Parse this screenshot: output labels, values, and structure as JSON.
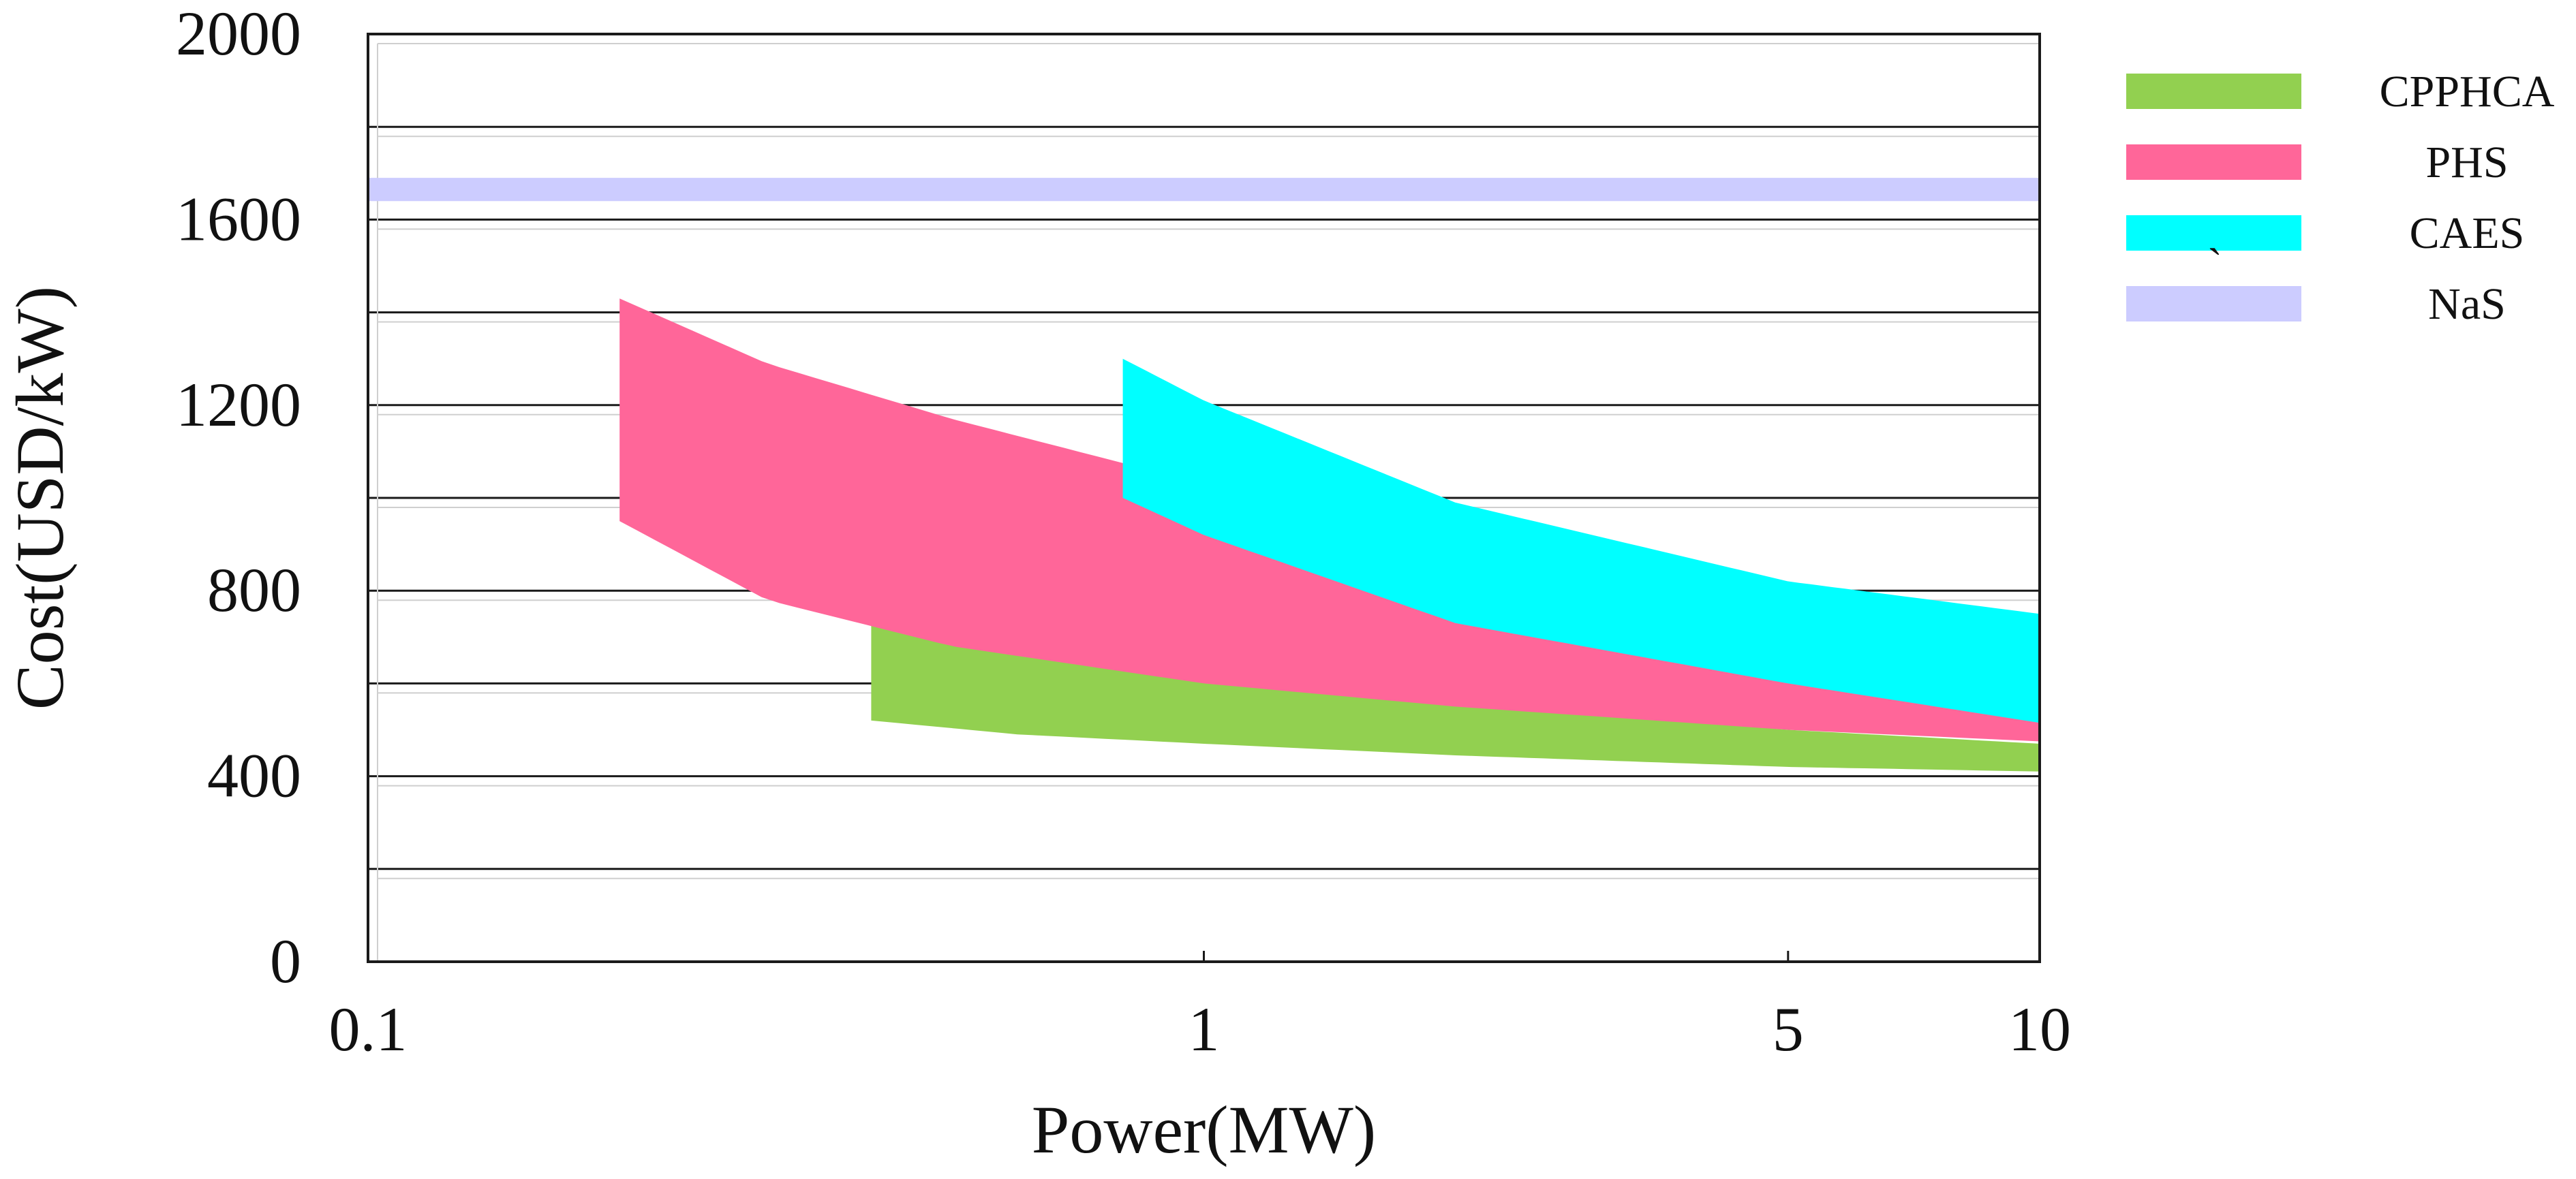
{
  "chart_data": {
    "type": "area",
    "title": "",
    "xlabel": "Power(MW)",
    "ylabel": "Cost(USD/kW)",
    "x_scale": "log",
    "xlim": [
      0.1,
      10
    ],
    "ylim": [
      0,
      2000
    ],
    "x_ticks": [
      {
        "value": 0.1,
        "label": "0.1"
      },
      {
        "value": 1,
        "label": "1"
      },
      {
        "value": 5,
        "label": "5"
      },
      {
        "value": 10,
        "label": "10"
      }
    ],
    "y_ticks": [
      {
        "value": 0,
        "label": "0"
      },
      {
        "value": 400,
        "label": "400"
      },
      {
        "value": 800,
        "label": "800"
      },
      {
        "value": 1200,
        "label": "1200"
      },
      {
        "value": 1600,
        "label": "1600"
      },
      {
        "value": 2000,
        "label": "2000"
      }
    ],
    "gridlines_y": [
      200,
      400,
      600,
      800,
      1000,
      1200,
      1400,
      1600,
      1800
    ],
    "legend_position": "top-right",
    "series": [
      {
        "name": "CPPHCA",
        "color": "#92d050",
        "x": [
          0.4,
          0.6,
          1,
          2,
          5,
          10
        ],
        "upper": [
          740,
          660,
          610,
          560,
          500,
          470
        ],
        "lower": [
          520,
          490,
          470,
          445,
          420,
          410
        ]
      },
      {
        "name": "PHS",
        "color": "#ff6699",
        "x": [
          0.2,
          0.3,
          0.5,
          1,
          2,
          5,
          10
        ],
        "upper": [
          1430,
          1290,
          1170,
          1030,
          900,
          780,
          730
        ],
        "lower": [
          950,
          780,
          680,
          600,
          550,
          500,
          475
        ]
      },
      {
        "name": "CAES",
        "color": "#00ffff",
        "x": [
          0.8,
          1,
          2,
          5,
          10
        ],
        "upper": [
          1300,
          1210,
          990,
          820,
          750
        ],
        "lower": [
          1000,
          920,
          730,
          600,
          515
        ]
      },
      {
        "name": "NaS",
        "color": "#ccccff",
        "x": [
          0.1,
          10
        ],
        "upper": [
          1690,
          1690
        ],
        "lower": [
          1640,
          1640
        ]
      }
    ],
    "annotations": [
      {
        "text": "`",
        "near": "CAES legend entry"
      }
    ]
  }
}
